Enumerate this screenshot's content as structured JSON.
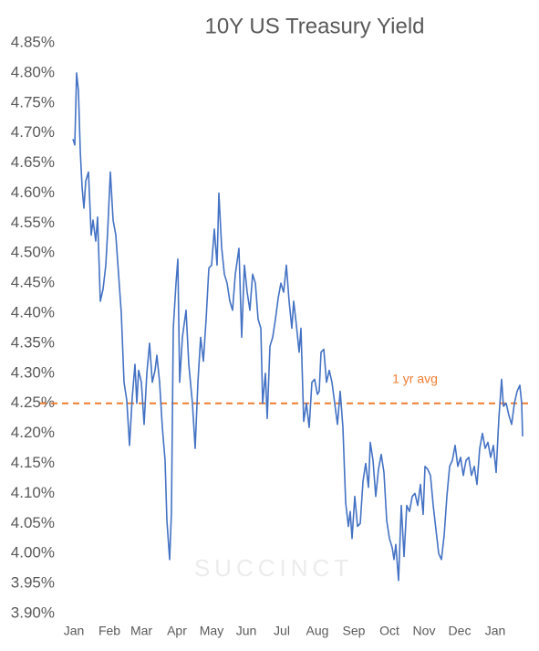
{
  "chart_data": {
    "type": "line",
    "title": "10Y US Treasury Yield",
    "watermark": "SUCCINCT",
    "xlim": [
      0,
      494
    ],
    "xticks": [
      {
        "value": 1,
        "label": "Jan"
      },
      {
        "value": 40,
        "label": "Feb"
      },
      {
        "value": 75,
        "label": "Mar"
      },
      {
        "value": 114,
        "label": "Apr"
      },
      {
        "value": 152,
        "label": "May"
      },
      {
        "value": 190,
        "label": "Jun"
      },
      {
        "value": 229,
        "label": "Jul"
      },
      {
        "value": 268,
        "label": "Aug"
      },
      {
        "value": 308,
        "label": "Sep"
      },
      {
        "value": 347,
        "label": "Oct"
      },
      {
        "value": 385,
        "label": "Nov"
      },
      {
        "value": 424,
        "label": "Dec"
      },
      {
        "value": 463,
        "label": "Jan"
      }
    ],
    "ylim": [
      3.9,
      4.85
    ],
    "yticks": [
      {
        "value": 4.85,
        "label": "4.85%"
      },
      {
        "value": 4.8,
        "label": "4.80%"
      },
      {
        "value": 4.75,
        "label": "4.75%"
      },
      {
        "value": 4.7,
        "label": "4.70%"
      },
      {
        "value": 4.65,
        "label": "4.65%"
      },
      {
        "value": 4.6,
        "label": "4.60%"
      },
      {
        "value": 4.55,
        "label": "4.55%"
      },
      {
        "value": 4.5,
        "label": "4.50%"
      },
      {
        "value": 4.45,
        "label": "4.45%"
      },
      {
        "value": 4.4,
        "label": "4.40%"
      },
      {
        "value": 4.35,
        "label": "4.35%"
      },
      {
        "value": 4.3,
        "label": "4.30%"
      },
      {
        "value": 4.25,
        "label": "4.25%"
      },
      {
        "value": 4.2,
        "label": "4.20%"
      },
      {
        "value": 4.15,
        "label": "4.15%"
      },
      {
        "value": 4.1,
        "label": "4.10%"
      },
      {
        "value": 4.05,
        "label": "4.05%"
      },
      {
        "value": 4.0,
        "label": "4.00%"
      },
      {
        "value": 3.95,
        "label": "3.95%"
      },
      {
        "value": 3.9,
        "label": "3.90%"
      }
    ],
    "grid": false,
    "reference_line": {
      "value": 4.25,
      "label": "1 yr avg",
      "color": "#ed7d31"
    },
    "series": [
      {
        "color": "#4472c4",
        "x": [
          0,
          2,
          4,
          6,
          8,
          10,
          12,
          14,
          17,
          20,
          22,
          25,
          27,
          30,
          33,
          36,
          38,
          41,
          44,
          47,
          50,
          53,
          56,
          59,
          62,
          65,
          68,
          70,
          72,
          75,
          78,
          81,
          84,
          87,
          90,
          92,
          95,
          98,
          101,
          103,
          106,
          108,
          110,
          113,
          115,
          117,
          120,
          124,
          127,
          131,
          134,
          137,
          140,
          143,
          146,
          149,
          152,
          155,
          158,
          160,
          163,
          166,
          169,
          172,
          175,
          178,
          182,
          185,
          188,
          191,
          194,
          197,
          200,
          203,
          206,
          208,
          211,
          213,
          216,
          219,
          222,
          225,
          228,
          231,
          234,
          237,
          240,
          242,
          245,
          248,
          250,
          253,
          256,
          259,
          262,
          265,
          268,
          270,
          272,
          275,
          278,
          281,
          284,
          287,
          290,
          293,
          296,
          299,
          302,
          304,
          306,
          309,
          312,
          315,
          318,
          321,
          324,
          326,
          329,
          332,
          335,
          338,
          341,
          344,
          347,
          350,
          352,
          354,
          357,
          360,
          363,
          366,
          369,
          372,
          375,
          378,
          381,
          384,
          386,
          389,
          392,
          395,
          398,
          401,
          404,
          407,
          410,
          413,
          416,
          419,
          422,
          425,
          428,
          431,
          434,
          437,
          440,
          443,
          446,
          449,
          452,
          455,
          458,
          461,
          464,
          467,
          470,
          472,
          475,
          478,
          481,
          484,
          487,
          490,
          492,
          493
        ],
        "values": [
          4.69,
          4.68,
          4.8,
          4.77,
          4.67,
          4.61,
          4.575,
          4.62,
          4.635,
          4.53,
          4.555,
          4.52,
          4.56,
          4.42,
          4.44,
          4.48,
          4.535,
          4.635,
          4.555,
          4.53,
          4.465,
          4.4,
          4.285,
          4.255,
          4.18,
          4.26,
          4.315,
          4.25,
          4.305,
          4.285,
          4.215,
          4.3,
          4.35,
          4.285,
          4.305,
          4.33,
          4.285,
          4.21,
          4.155,
          4.055,
          3.99,
          4.07,
          4.375,
          4.45,
          4.49,
          4.285,
          4.36,
          4.405,
          4.315,
          4.25,
          4.175,
          4.285,
          4.36,
          4.32,
          4.39,
          4.475,
          4.48,
          4.54,
          4.48,
          4.6,
          4.51,
          4.465,
          4.45,
          4.42,
          4.405,
          4.465,
          4.508,
          4.36,
          4.48,
          4.435,
          4.405,
          4.465,
          4.45,
          4.39,
          4.375,
          4.25,
          4.3,
          4.225,
          4.345,
          4.36,
          4.39,
          4.425,
          4.45,
          4.435,
          4.48,
          4.42,
          4.375,
          4.42,
          4.38,
          4.335,
          4.375,
          4.22,
          4.25,
          4.21,
          4.285,
          4.29,
          4.265,
          4.27,
          4.335,
          4.34,
          4.285,
          4.305,
          4.285,
          4.25,
          4.215,
          4.27,
          4.21,
          4.085,
          4.045,
          4.07,
          4.025,
          4.095,
          4.045,
          4.05,
          4.12,
          4.15,
          4.11,
          4.185,
          4.155,
          4.095,
          4.14,
          4.165,
          4.135,
          4.055,
          4.025,
          4.01,
          3.99,
          4.015,
          3.955,
          4.08,
          3.995,
          4.08,
          4.07,
          4.095,
          4.1,
          4.08,
          4.115,
          4.065,
          4.145,
          4.14,
          4.13,
          4.08,
          4.04,
          4.0,
          3.99,
          4.03,
          4.095,
          4.145,
          4.155,
          4.18,
          4.145,
          4.16,
          4.13,
          4.155,
          4.16,
          4.13,
          4.145,
          4.115,
          4.175,
          4.2,
          4.175,
          4.185,
          4.16,
          4.18,
          4.135,
          4.225,
          4.29,
          4.245,
          4.25,
          4.23,
          4.215,
          4.25,
          4.27,
          4.28,
          4.25,
          4.195
        ]
      }
    ]
  }
}
